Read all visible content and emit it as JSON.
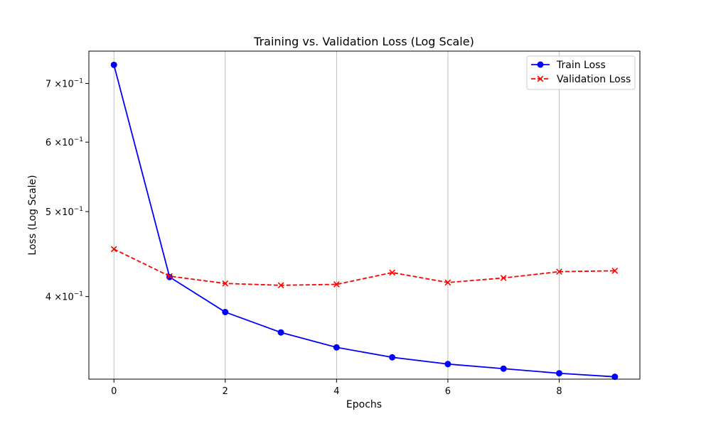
{
  "chart_data": {
    "type": "line",
    "title": "Training vs. Validation Loss (Log Scale)",
    "xlabel": "Epochs",
    "ylabel": "Loss (Log Scale)",
    "x": [
      0,
      1,
      2,
      3,
      4,
      5,
      6,
      7,
      8,
      9
    ],
    "xlim": [
      -0.45,
      9.45
    ],
    "ylim": [
      0.322,
      0.762
    ],
    "yscale": "log",
    "xticks": [
      0,
      2,
      4,
      6,
      8
    ],
    "xtick_labels": [
      "0",
      "2",
      "4",
      "6",
      "8"
    ],
    "yticks": [
      {
        "value": 0.4,
        "mantissa": "4",
        "exponent": "−1"
      },
      {
        "value": 0.5,
        "mantissa": "5",
        "exponent": "−1"
      },
      {
        "value": 0.6,
        "mantissa": "6",
        "exponent": "−1"
      },
      {
        "value": 0.7,
        "mantissa": "7",
        "exponent": "−1"
      }
    ],
    "ytick_times": "×10",
    "grid": "x-major",
    "legend_position": "top-right",
    "series": [
      {
        "name": "Train Loss",
        "color": "#0000ff",
        "marker": "circle",
        "linestyle": "solid",
        "values": [
          0.735,
          0.421,
          0.384,
          0.364,
          0.35,
          0.341,
          0.335,
          0.331,
          0.327,
          0.324
        ]
      },
      {
        "name": "Validation Loss",
        "color": "#ff0000",
        "marker": "x",
        "linestyle": "dashed",
        "values": [
          0.453,
          0.422,
          0.414,
          0.412,
          0.413,
          0.426,
          0.415,
          0.42,
          0.427,
          0.428
        ]
      }
    ]
  }
}
